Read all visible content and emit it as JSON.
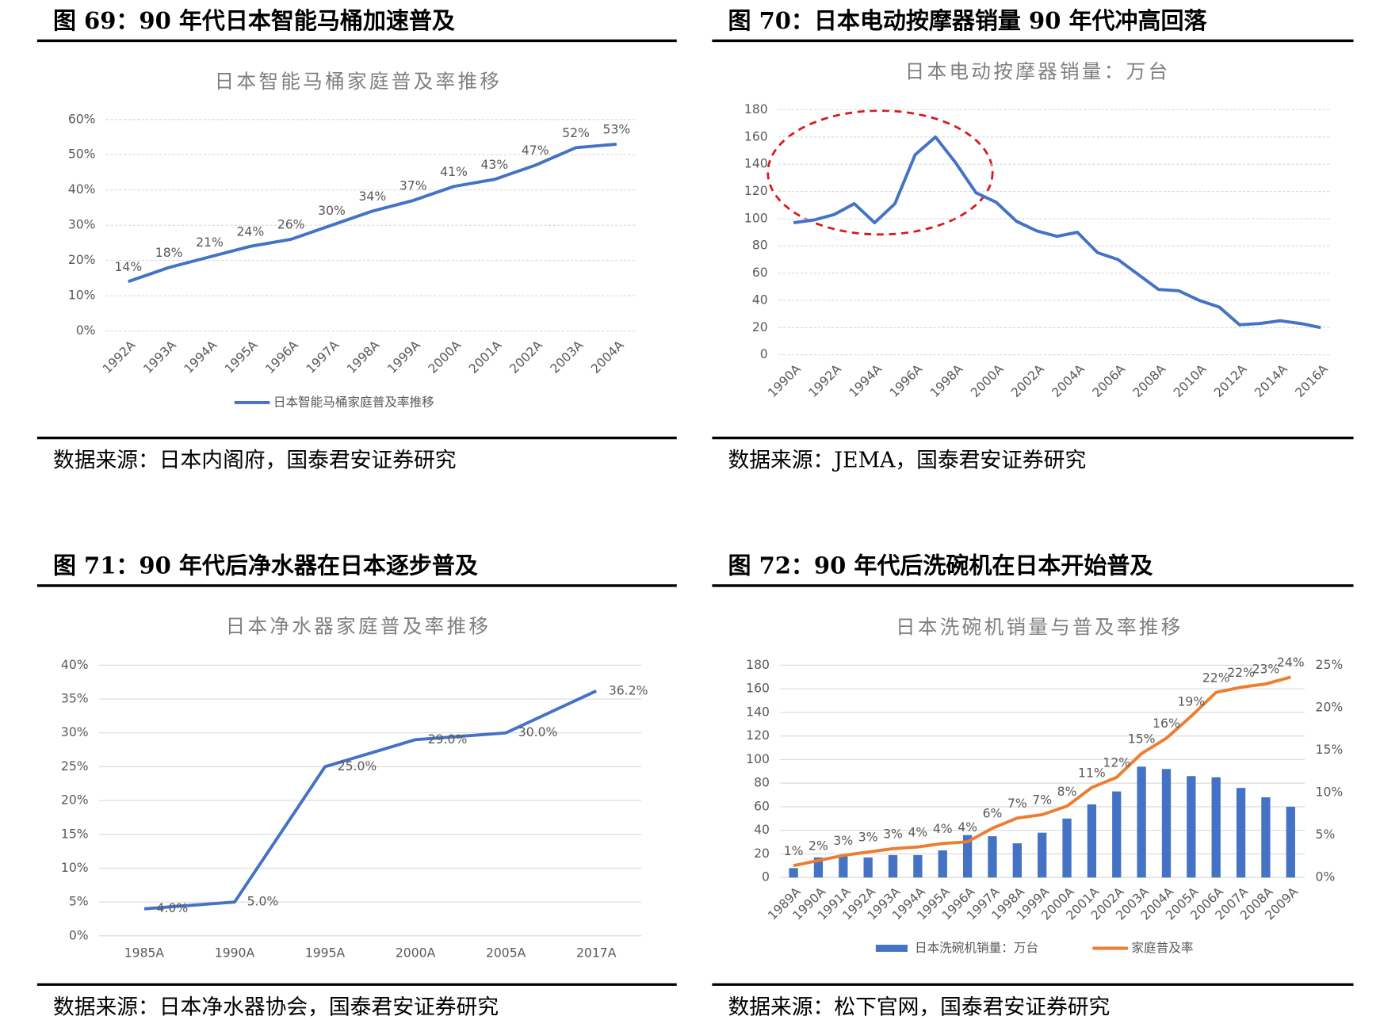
{
  "chart_data": [
    {
      "type": "line",
      "heading": "图 69：90 年代日本智能马桶加速普及",
      "title": "日本智能马桶家庭普及率推移",
      "source": "数据来源：日本内阁府，国泰君安证券研究",
      "categories": [
        "1992A",
        "1993A",
        "1994A",
        "1995A",
        "1996A",
        "1997A",
        "1998A",
        "1999A",
        "2000A",
        "2001A",
        "2002A",
        "2003A",
        "2004A"
      ],
      "series": [
        {
          "name": "日本智能马桶家庭普及率推移",
          "color": "#4472c4",
          "values": [
            14,
            18,
            21,
            24,
            26,
            30,
            34,
            37,
            41,
            43,
            47,
            52,
            53
          ],
          "value_labels": [
            "14%",
            "18%",
            "21%",
            "24%",
            "26%",
            "30%",
            "34%",
            "37%",
            "41%",
            "43%",
            "47%",
            "52%",
            "53%"
          ]
        }
      ],
      "ylim": [
        0,
        60
      ],
      "yticks": [
        {
          "value": 0,
          "label": "0%"
        },
        {
          "value": 10,
          "label": "10%"
        },
        {
          "value": 20,
          "label": "20%"
        },
        {
          "value": 30,
          "label": "30%"
        },
        {
          "value": 40,
          "label": "40%"
        },
        {
          "value": 50,
          "label": "50%"
        },
        {
          "value": 60,
          "label": "60%"
        }
      ],
      "grid": true,
      "legend": "bottom"
    },
    {
      "type": "line",
      "heading": "图 70：日本电动按摩器销量 90 年代冲高回落",
      "title": "日本电动按摩器销量：万台",
      "source": "数据来源：JEMA，国泰君安证券研究",
      "categories": [
        "1990A",
        null,
        "1992A",
        null,
        "1994A",
        null,
        "1996A",
        null,
        "1998A",
        null,
        "2000A",
        null,
        "2002A",
        null,
        "2004A",
        null,
        "2006A",
        null,
        "2008A",
        null,
        "2010A",
        null,
        "2012A",
        null,
        "2014A",
        null,
        "2016A"
      ],
      "series": [
        {
          "color": "#4472c4",
          "values": [
            97,
            99,
            103,
            111,
            97,
            111,
            147,
            160,
            141,
            119,
            112,
            98,
            91,
            87,
            90,
            75,
            70,
            59,
            48,
            47,
            40,
            35,
            22,
            23,
            25,
            23,
            20
          ]
        }
      ],
      "ylim": [
        0,
        180
      ],
      "yticks": [
        0,
        20,
        40,
        60,
        80,
        100,
        120,
        140,
        160,
        180
      ],
      "grid": true
    },
    {
      "type": "line",
      "heading": "图 71：90 年代后净水器在日本逐步普及",
      "title": "日本净水器家庭普及率推移",
      "source": "数据来源：日本净水器协会，国泰君安证券研究",
      "categories": [
        "1985A",
        "1990A",
        "1995A",
        "2000A",
        "2005A",
        "2017A"
      ],
      "series": [
        {
          "color": "#4472c4",
          "values": [
            4,
            5,
            25,
            29,
            30,
            36.2
          ],
          "value_labels": [
            "4.0%",
            "5.0%",
            "25.0%",
            "29.0%",
            "30.0%",
            "36.2%"
          ]
        }
      ],
      "ylim": [
        0,
        40
      ],
      "yticks": [
        {
          "value": 0,
          "label": "0%"
        },
        {
          "value": 5,
          "label": "5%"
        },
        {
          "value": 10,
          "label": "10%"
        },
        {
          "value": 15,
          "label": "15%"
        },
        {
          "value": 20,
          "label": "20%"
        },
        {
          "value": 25,
          "label": "25%"
        },
        {
          "value": 30,
          "label": "30%"
        },
        {
          "value": 35,
          "label": "35%"
        },
        {
          "value": 40,
          "label": "40%"
        }
      ],
      "grid": true
    },
    {
      "type": "bar",
      "heading": "图 72：90 年代后洗碗机在日本开始普及",
      "title": "日本洗碗机销量与普及率推移",
      "source": "数据来源：松下官网，国泰君安证券研究",
      "categories": [
        "1989A",
        "1990A",
        "1991A",
        "1992A",
        "1993A",
        "1994A",
        "1995A",
        "1996A",
        "1997A",
        "1998A",
        "1999A",
        "2000A",
        "2001A",
        "2002A",
        "2003A",
        "2004A",
        "2005A",
        "2006A",
        "2007A",
        "2008A",
        "2009A"
      ],
      "series": [
        {
          "name": "日本洗碗机销量：万台",
          "type": "bar",
          "color": "#4472c4",
          "values": [
            8,
            17,
            18,
            17,
            19,
            19,
            23,
            36,
            35,
            29,
            38,
            50,
            62,
            73,
            94,
            92,
            86,
            85,
            76,
            68,
            60
          ]
        },
        {
          "name": "家庭普及率",
          "type": "line",
          "axis": "y2",
          "color": "#ed7d31",
          "values": [
            1.4,
            2.0,
            2.6,
            3.0,
            3.4,
            3.6,
            4.0,
            4.2,
            5.8,
            7.0,
            7.4,
            8.4,
            10.6,
            11.8,
            14.6,
            16.4,
            19.0,
            21.8,
            22.4,
            22.8,
            23.6
          ],
          "value_labels": [
            "1%",
            "2%",
            "3%",
            "3%",
            "3%",
            "4%",
            "4%",
            "4%",
            "6%",
            "7%",
            "7%",
            "8%",
            "11%",
            "12%",
            "15%",
            "16%",
            "19%",
            "22%",
            "22%",
            "23%",
            "24%"
          ]
        }
      ],
      "ylim": [
        0,
        180
      ],
      "yticks": [
        0,
        20,
        40,
        60,
        80,
        100,
        120,
        140,
        160,
        180
      ],
      "y2lim": [
        0,
        25
      ],
      "y2ticks": [
        {
          "value": 0,
          "label": "0%"
        },
        {
          "value": 5,
          "label": "5%"
        },
        {
          "value": 10,
          "label": "10%"
        },
        {
          "value": 15,
          "label": "15%"
        },
        {
          "value": 20,
          "label": "20%"
        },
        {
          "value": 25,
          "label": "25%"
        }
      ],
      "grid": true,
      "legend": "bottom"
    }
  ]
}
